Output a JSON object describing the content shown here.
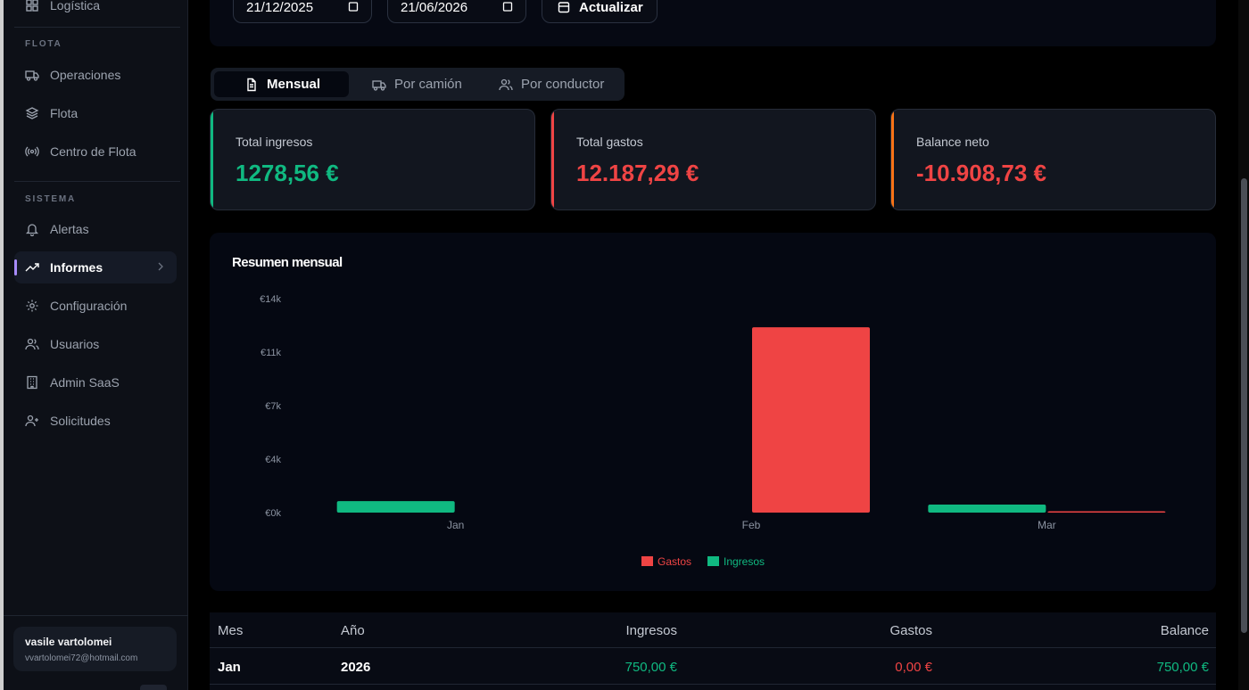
{
  "sidebar": {
    "top_item_label": "Logística",
    "sections": [
      {
        "title": "FLOTA",
        "items": [
          {
            "label": "Operaciones",
            "icon": "truck-icon"
          },
          {
            "label": "Flota",
            "icon": "layers-icon"
          },
          {
            "label": "Centro de Flota",
            "icon": "radio-icon"
          }
        ]
      },
      {
        "title": "SISTEMA",
        "items": [
          {
            "label": "Alertas",
            "icon": "bell-icon"
          },
          {
            "label": "Informes",
            "icon": "trending-up-icon",
            "active": true
          },
          {
            "label": "Configuración",
            "icon": "gear-icon"
          },
          {
            "label": "Usuarios",
            "icon": "users-icon"
          },
          {
            "label": "Admin SaaS",
            "icon": "building-icon"
          },
          {
            "label": "Solicitudes",
            "icon": "user-plus-icon"
          }
        ]
      }
    ],
    "user": {
      "name": "vasile vartolomei",
      "email": "vvartolomei72@hotmail.com"
    }
  },
  "filters": {
    "date_from": "21/12/2025",
    "date_to": "21/06/2026",
    "refresh_label": "Actualizar"
  },
  "tabs": [
    {
      "label": "Mensual",
      "icon": "document-icon",
      "active": true
    },
    {
      "label": "Por camión",
      "icon": "truck-icon"
    },
    {
      "label": "Por conductor",
      "icon": "users-icon"
    }
  ],
  "stats": [
    {
      "label": "Total ingresos",
      "value": "1278,56 €",
      "accent": "#10b981"
    },
    {
      "label": "Total gastos",
      "value": "12.187,29 €",
      "accent": "#ef4444"
    },
    {
      "label": "Balance neto",
      "value": "-10.908,73 €",
      "accent": "#f97316"
    }
  ],
  "chart_data": {
    "type": "bar",
    "title": "Resumen mensual",
    "categories": [
      "Jan",
      "Feb",
      "Mar"
    ],
    "series": [
      {
        "name": "Ingresos",
        "color": "#10b981",
        "values": [
          750,
          0,
          528.56
        ]
      },
      {
        "name": "Gastos",
        "color": "#ef4444",
        "values": [
          0,
          12125,
          62.29
        ]
      }
    ],
    "y_ticks": [
      "€0k",
      "€4k",
      "€7k",
      "€11k",
      "€14k"
    ],
    "ylim": [
      0,
      14000
    ],
    "legend": {
      "position": "bottom",
      "order": [
        "Gastos",
        "Ingresos"
      ]
    },
    "grid": false
  },
  "table": {
    "headers": [
      "Mes",
      "Año",
      "Ingresos",
      "Gastos",
      "Balance"
    ],
    "rows": [
      [
        "Jan",
        "2026",
        "750,00 €",
        "0,00 €",
        "750,00 €"
      ]
    ]
  }
}
